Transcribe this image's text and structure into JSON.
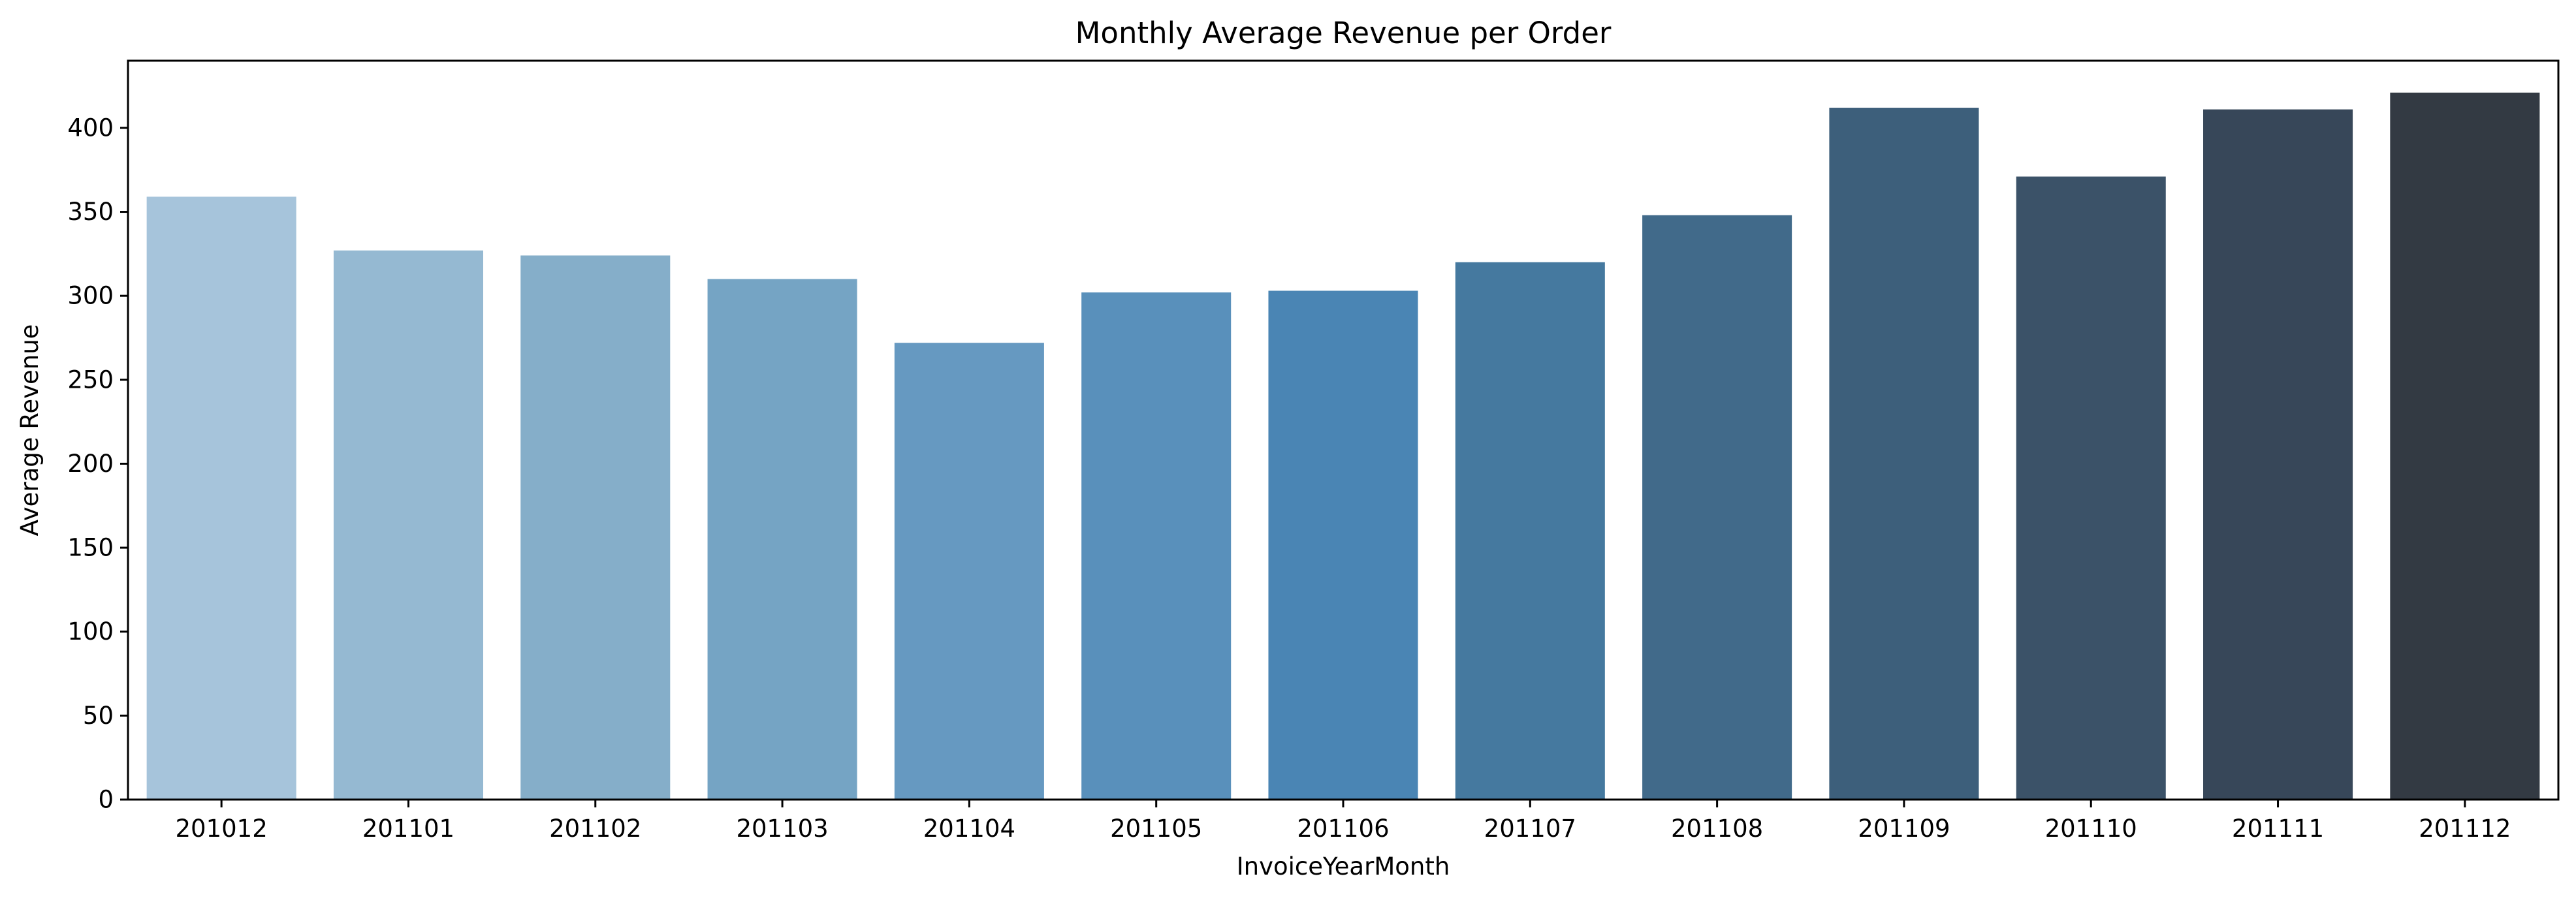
{
  "chart_data": {
    "type": "bar",
    "title": "Monthly Average Revenue per Order",
    "xlabel": "InvoiceYearMonth",
    "ylabel": "Average Revenue",
    "ylim": [
      0,
      440
    ],
    "yticks": [
      0,
      50,
      100,
      150,
      200,
      250,
      300,
      350,
      400
    ],
    "categories": [
      "201012",
      "201101",
      "201102",
      "201103",
      "201104",
      "201105",
      "201106",
      "201107",
      "201108",
      "201109",
      "201110",
      "201111",
      "201112"
    ],
    "values": [
      359,
      327,
      324,
      310,
      272,
      302,
      303,
      320,
      348,
      412,
      371,
      411,
      421
    ],
    "colors": [
      "#a6c4db",
      "#95b9d2",
      "#85aec9",
      "#75a4c4",
      "#6699c1",
      "#5990bb",
      "#4a85b4",
      "#45799f",
      "#416a8a",
      "#3d5f7b",
      "#3b5268",
      "#374759",
      "#333a43"
    ],
    "grid": false,
    "legend": false
  }
}
